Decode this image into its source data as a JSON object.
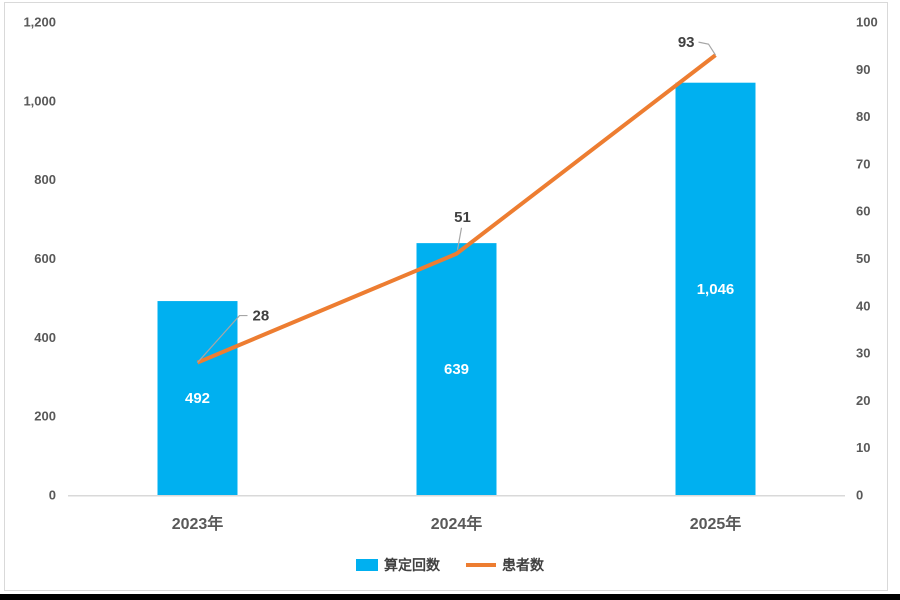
{
  "frame": {
    "background": "#FFFFFF",
    "border_color": "#D9D9D9",
    "bottom_strip_color": "#000000"
  },
  "chart_data": {
    "type": "combo",
    "title": "",
    "categories": [
      "2023年",
      "2024年",
      "2025年"
    ],
    "series": [
      {
        "name": "算定回数",
        "type": "bar",
        "axis": "left",
        "color": "#00B0F0",
        "values": [
          492,
          639,
          1046
        ],
        "labels": [
          "492",
          "639",
          "1,046"
        ],
        "label_color": "#FFFFFF"
      },
      {
        "name": "患者数",
        "type": "line",
        "axis": "right",
        "color": "#ED7D31",
        "values": [
          28,
          51,
          93
        ],
        "labels": [
          "28",
          "51",
          "93"
        ],
        "label_color": "#404040"
      }
    ],
    "left_axis": {
      "min": 0,
      "max": 1200,
      "step": 200,
      "ticks": [
        "0",
        "200",
        "400",
        "600",
        "800",
        "1,000",
        "1,200"
      ]
    },
    "right_axis": {
      "min": 0,
      "max": 100,
      "step": 10,
      "ticks": [
        "0",
        "10",
        "20",
        "30",
        "40",
        "50",
        "60",
        "70",
        "80",
        "90",
        "100"
      ]
    },
    "grid": false,
    "legend_position": "bottom",
    "axis_text_color": "#595959",
    "axis_line_color": "#D9D9D9",
    "leader_line_color": "#A6A6A6"
  }
}
